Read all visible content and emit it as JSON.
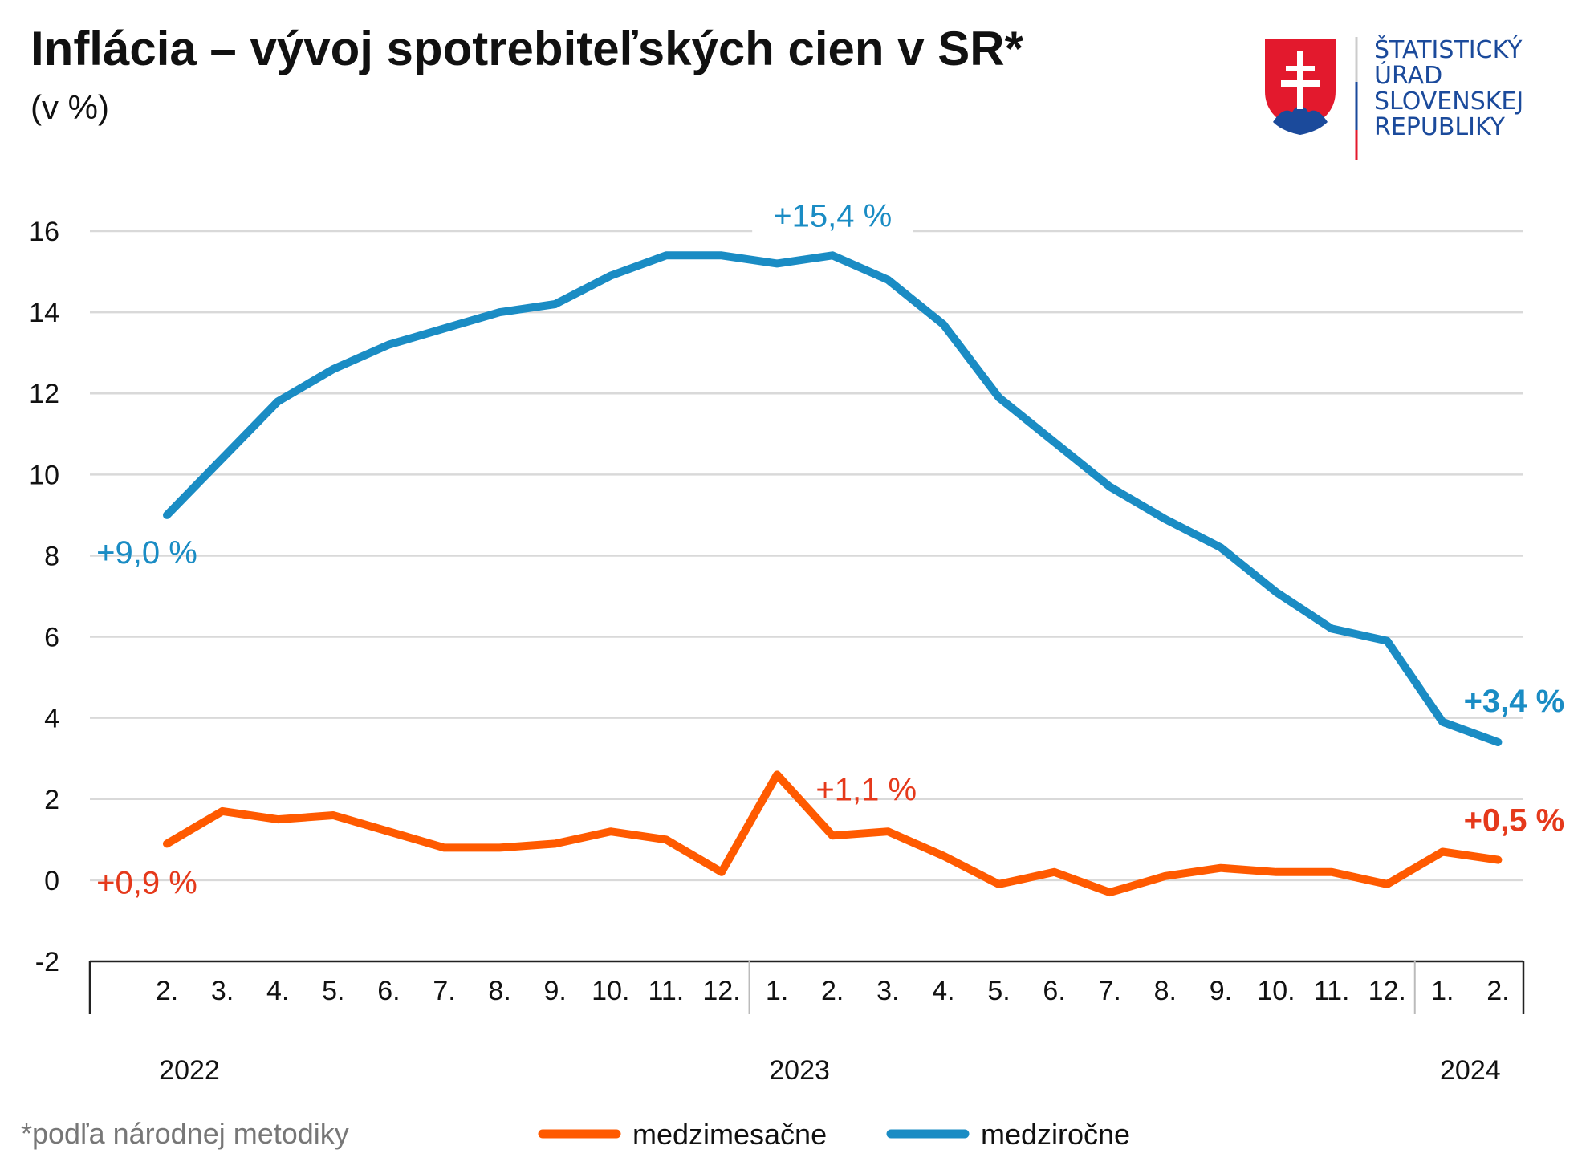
{
  "header": {
    "title": "Inflácia – vývoj spotrebiteľských cien v SR*",
    "subtitle": "(v %)"
  },
  "logo": {
    "lines": [
      "ŠTATISTICKÝ",
      "ÚRAD",
      "SLOVENSKEJ",
      "REPUBLIKY"
    ],
    "color": "#1b4a9b"
  },
  "footnote": "*podľa národnej metodiky",
  "colors": {
    "yoy": "#1a8cc4",
    "mom": "#ff5a00",
    "mom_label": "#e5391b",
    "grid": "#d9d9d9",
    "axis": "#222222"
  },
  "chart_data": {
    "type": "line",
    "title": "Inflácia – vývoj spotrebiteľských cien v SR*",
    "ylabel": "(v %)",
    "ylim": [
      -2,
      16
    ],
    "yticks": [
      -2,
      0,
      2,
      4,
      6,
      8,
      10,
      12,
      14,
      16
    ],
    "ytick_labels": [
      "-2",
      "0",
      "2",
      "4",
      "6",
      "8",
      "10",
      "12",
      "14",
      "16"
    ],
    "grid": true,
    "legend_position": "bottom",
    "x": [
      "2.",
      "3.",
      "4.",
      "5.",
      "6.",
      "7.",
      "8.",
      "9.",
      "10.",
      "11.",
      "12.",
      "1.",
      "2.",
      "3.",
      "4.",
      "5.",
      "6.",
      "7.",
      "8.",
      "9.",
      "10.",
      "11.",
      "12.",
      "1.",
      "2."
    ],
    "years": [
      {
        "label": "2022",
        "start": 0,
        "end": 10
      },
      {
        "label": "2023",
        "start": 11,
        "end": 22
      },
      {
        "label": "2024",
        "start": 23,
        "end": 24
      }
    ],
    "series": [
      {
        "name": "medziročne",
        "key": "yoy",
        "values": [
          9.0,
          10.4,
          11.8,
          12.6,
          13.2,
          13.6,
          14.0,
          14.2,
          14.9,
          15.4,
          15.4,
          15.2,
          15.4,
          14.8,
          13.7,
          11.9,
          10.8,
          9.7,
          8.9,
          8.2,
          7.1,
          6.2,
          5.9,
          3.9,
          3.4
        ]
      },
      {
        "name": "medzimesačne",
        "key": "mom",
        "values": [
          0.9,
          1.7,
          1.5,
          1.6,
          1.2,
          0.8,
          0.8,
          0.9,
          1.2,
          1.0,
          0.2,
          2.6,
          1.1,
          1.2,
          0.6,
          -0.1,
          0.2,
          -0.3,
          0.1,
          0.3,
          0.2,
          0.2,
          -0.1,
          0.7,
          0.5
        ]
      }
    ],
    "annotations": [
      {
        "series": "yoy",
        "index": 0,
        "text": "+9,0 %",
        "bold": false
      },
      {
        "series": "yoy",
        "index": 12,
        "text": "+15,4 %",
        "bold": false
      },
      {
        "series": "yoy",
        "index": 24,
        "text": "+3,4 %",
        "bold": true
      },
      {
        "series": "mom",
        "index": 0,
        "text": "+0,9 %",
        "bold": false
      },
      {
        "series": "mom",
        "index": 12,
        "text": "+1,1 %",
        "bold": false
      },
      {
        "series": "mom",
        "index": 24,
        "text": "+0,5 %",
        "bold": true
      }
    ],
    "legend": [
      {
        "key": "mom",
        "label": "medzimesačne"
      },
      {
        "key": "yoy",
        "label": "medziročne"
      }
    ]
  }
}
